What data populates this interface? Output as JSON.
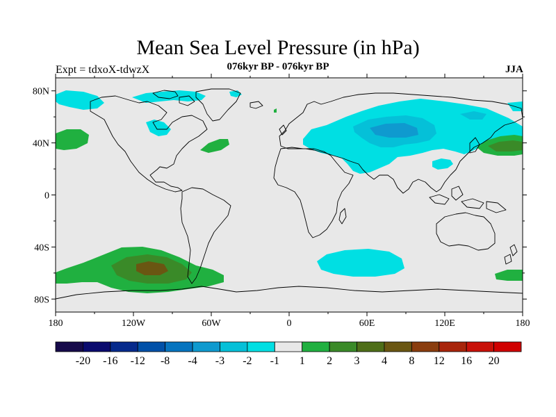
{
  "title": "Mean Sea Level Pressure (in hPa)",
  "subtitle": "076kyr BP - 076kyr BP",
  "left_label": "Expt = tdxoX-tdwzX",
  "right_label": "JJA",
  "map": {
    "projection": "cylindrical equidistant",
    "lon_range": [
      -180,
      180
    ],
    "lat_range": [
      -90,
      90
    ],
    "lat_ticks": [
      80,
      40,
      0,
      -40,
      -80
    ],
    "lat_tick_labels": [
      "80N",
      "40N",
      "0",
      "40S",
      "80S"
    ],
    "lon_ticks": [
      -180,
      -120,
      -60,
      0,
      60,
      120,
      180
    ],
    "lon_tick_labels": [
      "180",
      "120W",
      "60W",
      "0",
      "60E",
      "120E",
      "180"
    ],
    "background_color": "#e8e8e8",
    "coastline_color": "#000000"
  },
  "colorbar": {
    "labels": [
      "-20",
      "-16",
      "-12",
      "-8",
      "-4",
      "-3",
      "-2",
      "-1",
      "1",
      "2",
      "3",
      "4",
      "8",
      "12",
      "16",
      "20"
    ],
    "colors": [
      "#160a4a",
      "#0a0a6e",
      "#062a8c",
      "#0050a8",
      "#0674bf",
      "#0f9acf",
      "#05c0d8",
      "#00dfe3",
      "#e8e8e8",
      "#20b040",
      "#3a8a28",
      "#4e6e18",
      "#6a5612",
      "#8a3d0e",
      "#a8240a",
      "#c81008",
      "#d00000"
    ]
  },
  "anomalies": [
    {
      "id": "siberia-low",
      "sign": "negative",
      "levels": [
        -1,
        -2
      ],
      "center": [
        90,
        52
      ]
    },
    {
      "id": "arctic-low",
      "sign": "negative",
      "levels": [
        -1
      ],
      "center": [
        -100,
        80
      ]
    },
    {
      "id": "south-atlantic-indian-low",
      "sign": "negative",
      "levels": [
        -1
      ],
      "center": [
        52,
        -52
      ]
    },
    {
      "id": "south-pacific-high",
      "sign": "positive",
      "levels": [
        1,
        2,
        3
      ],
      "center": [
        -108,
        -58
      ]
    },
    {
      "id": "north-pacific-high-west",
      "sign": "positive",
      "levels": [
        1,
        2
      ],
      "center": [
        162,
        38
      ]
    },
    {
      "id": "north-pacific-high-east",
      "sign": "positive",
      "levels": [
        1
      ],
      "center": [
        -172,
        42
      ]
    },
    {
      "id": "north-atlantic-high",
      "sign": "positive",
      "levels": [
        1
      ],
      "center": [
        -48,
        37
      ]
    }
  ]
}
